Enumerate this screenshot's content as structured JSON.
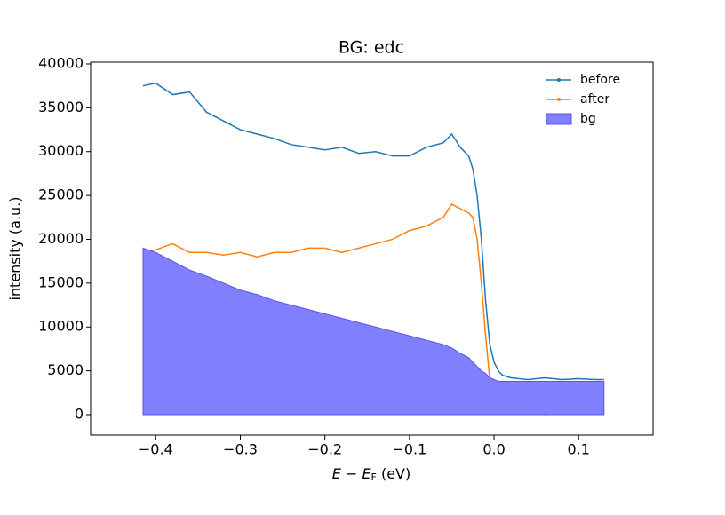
{
  "chart_data": {
    "type": "line",
    "title": "BG: edc",
    "xlabel": [
      "E",
      " − ",
      "E",
      "F",
      " (eV)"
    ],
    "ylabel": "intensity (a.u.)",
    "x": [
      -0.415,
      -0.4,
      -0.38,
      -0.36,
      -0.34,
      -0.32,
      -0.3,
      -0.28,
      -0.26,
      -0.24,
      -0.22,
      -0.2,
      -0.18,
      -0.16,
      -0.14,
      -0.12,
      -0.1,
      -0.08,
      -0.06,
      -0.05,
      -0.04,
      -0.03,
      -0.025,
      -0.02,
      -0.015,
      -0.01,
      -0.005,
      0.0,
      0.005,
      0.01,
      0.02,
      0.04,
      0.06,
      0.08,
      0.1,
      0.12,
      0.13
    ],
    "series": [
      {
        "name": "before",
        "color": "#1f77b4",
        "mark": "line",
        "values": [
          37500,
          37800,
          36500,
          36800,
          34500,
          33500,
          32500,
          32000,
          31500,
          30800,
          30500,
          30200,
          30500,
          29800,
          30000,
          29500,
          29500,
          30500,
          31000,
          32000,
          30500,
          29500,
          28000,
          25000,
          20000,
          13000,
          8000,
          6000,
          5000,
          4500,
          4200,
          4000,
          4200,
          4000,
          4100,
          4000,
          4000
        ]
      },
      {
        "name": "after",
        "color": "#ff7f0e",
        "mark": "line",
        "values": [
          18500,
          18800,
          19500,
          18500,
          18500,
          18200,
          18500,
          18000,
          18500,
          18500,
          19000,
          19000,
          18500,
          19000,
          19500,
          20000,
          21000,
          21500,
          22500,
          24000,
          23500,
          23000,
          22500,
          20000,
          15000,
          9000,
          4000,
          1500,
          800,
          500,
          300,
          200,
          0,
          300,
          500,
          200,
          200
        ]
      },
      {
        "name": "bg",
        "color": "#8080ff",
        "mark": "area",
        "values": [
          19000,
          18500,
          17500,
          16500,
          15800,
          15000,
          14200,
          13700,
          13000,
          12500,
          12000,
          11500,
          11000,
          10500,
          10000,
          9500,
          9000,
          8500,
          8000,
          7600,
          7000,
          6500,
          6000,
          5500,
          5000,
          4700,
          4200,
          4000,
          3800,
          3800,
          3800,
          3800,
          3800,
          3800,
          3800,
          3800,
          3800
        ]
      }
    ],
    "xlim": [
      -0.477,
      0.188
    ],
    "ylim": [
      -2330,
      40200
    ],
    "xticks": [
      {
        "value": -0.4,
        "label": "−0.4"
      },
      {
        "value": -0.3,
        "label": "−0.3"
      },
      {
        "value": -0.2,
        "label": "−0.2"
      },
      {
        "value": -0.1,
        "label": "−0.1"
      },
      {
        "value": 0.0,
        "label": "0.0"
      },
      0.1
    ],
    "yticks": [
      0,
      5000,
      10000,
      15000,
      20000,
      25000,
      30000,
      35000,
      40000
    ],
    "legend": "upper right"
  }
}
